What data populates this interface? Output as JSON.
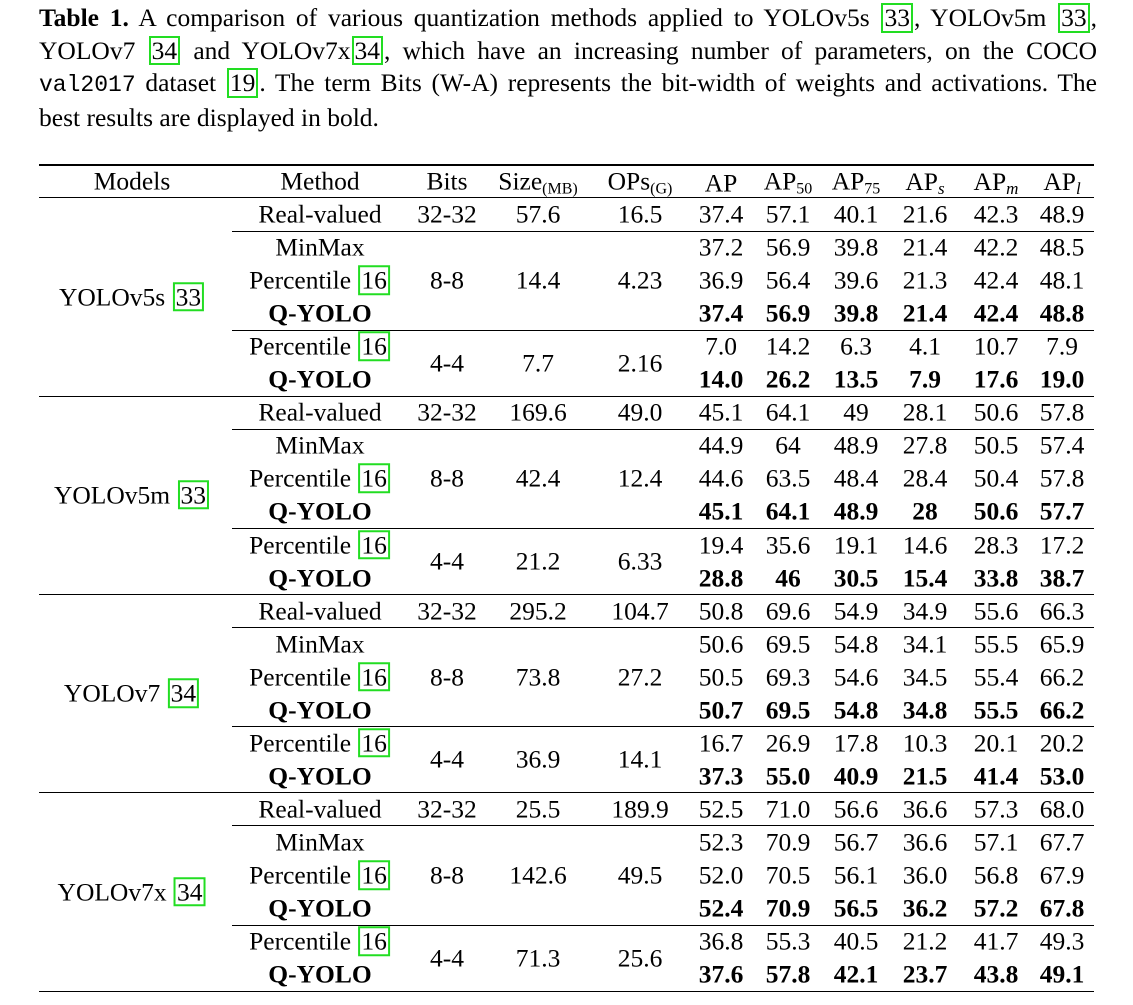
{
  "caption": {
    "label": "Table 1.",
    "parts": [
      " A comparison of various quantization methods applied to YOLOv5s ",
      "33",
      ", YOLOv5m ",
      "33",
      ", YOLOv7 ",
      "34",
      " and YOLOv7x",
      "34",
      ", which have an increasing number of parameters, on the COCO ",
      "val2017",
      " dataset ",
      "19",
      ". The term Bits (W-A) represents the bit-width of weights and activations. The best results are displayed in bold."
    ]
  },
  "header": {
    "models": "Models",
    "method": "Method",
    "bits": "Bits",
    "size": "Size",
    "size_sub": "(MB)",
    "ops": "OPs",
    "ops_sub": "(G)",
    "ap": "AP",
    "ap50": "AP",
    "ap50_sub": "50",
    "ap75": "AP",
    "ap75_sub": "75",
    "aps": "AP",
    "aps_sub": "s",
    "apm": "AP",
    "apm_sub": "m",
    "apl": "AP",
    "apl_sub": "l"
  },
  "groups": [
    {
      "model": "YOLOv5s",
      "cite": "33",
      "real": {
        "label": "Real-valued",
        "bits": "32-32",
        "size": "57.6",
        "ops": "16.5",
        "vals": [
          "37.4",
          "57.1",
          "40.1",
          "21.6",
          "42.3",
          "48.9"
        ]
      },
      "b8": {
        "bits": "8-8",
        "size": "14.4",
        "ops": "4.23",
        "rows": [
          {
            "method": "MinMax",
            "cite": "",
            "bold": false,
            "vals": [
              "37.2",
              "56.9",
              "39.8",
              "21.4",
              "42.2",
              "48.5"
            ]
          },
          {
            "method": "Percentile",
            "cite": "16",
            "bold": false,
            "vals": [
              "36.9",
              "56.4",
              "39.6",
              "21.3",
              "42.4",
              "48.1"
            ]
          },
          {
            "method": "Q-YOLO",
            "cite": "",
            "bold": true,
            "vals": [
              "37.4",
              "56.9",
              "39.8",
              "21.4",
              "42.4",
              "48.8"
            ]
          }
        ]
      },
      "b4": {
        "bits": "4-4",
        "size": "7.7",
        "ops": "2.16",
        "rows": [
          {
            "method": "Percentile",
            "cite": "16",
            "bold": false,
            "vals": [
              "7.0",
              "14.2",
              "6.3",
              "4.1",
              "10.7",
              "7.9"
            ]
          },
          {
            "method": "Q-YOLO",
            "cite": "",
            "bold": true,
            "vals": [
              "14.0",
              "26.2",
              "13.5",
              "7.9",
              "17.6",
              "19.0"
            ]
          }
        ]
      }
    },
    {
      "model": "YOLOv5m",
      "cite": "33",
      "real": {
        "label": "Real-valued",
        "bits": "32-32",
        "size": "169.6",
        "ops": "49.0",
        "vals": [
          "45.1",
          "64.1",
          "49",
          "28.1",
          "50.6",
          "57.8"
        ]
      },
      "b8": {
        "bits": "8-8",
        "size": "42.4",
        "ops": "12.4",
        "rows": [
          {
            "method": "MinMax",
            "cite": "",
            "bold": false,
            "vals": [
              "44.9",
              "64",
              "48.9",
              "27.8",
              "50.5",
              "57.4"
            ]
          },
          {
            "method": "Percentile",
            "cite": "16",
            "bold": false,
            "vals": [
              "44.6",
              "63.5",
              "48.4",
              "28.4",
              "50.4",
              "57.8"
            ]
          },
          {
            "method": "Q-YOLO",
            "cite": "",
            "bold": true,
            "vals": [
              "45.1",
              "64.1",
              "48.9",
              "28",
              "50.6",
              "57.7"
            ]
          }
        ]
      },
      "b4": {
        "bits": "4-4",
        "size": "21.2",
        "ops": "6.33",
        "rows": [
          {
            "method": "Percentile",
            "cite": "16",
            "bold": false,
            "vals": [
              "19.4",
              "35.6",
              "19.1",
              "14.6",
              "28.3",
              "17.2"
            ]
          },
          {
            "method": "Q-YOLO",
            "cite": "",
            "bold": true,
            "vals": [
              "28.8",
              "46",
              "30.5",
              "15.4",
              "33.8",
              "38.7"
            ]
          }
        ]
      }
    },
    {
      "model": "YOLOv7",
      "cite": "34",
      "real": {
        "label": "Real-valued",
        "bits": "32-32",
        "size": "295.2",
        "ops": "104.7",
        "vals": [
          "50.8",
          "69.6",
          "54.9",
          "34.9",
          "55.6",
          "66.3"
        ]
      },
      "b8": {
        "bits": "8-8",
        "size": "73.8",
        "ops": "27.2",
        "rows": [
          {
            "method": "MinMax",
            "cite": "",
            "bold": false,
            "vals": [
              "50.6",
              "69.5",
              "54.8",
              "34.1",
              "55.5",
              "65.9"
            ]
          },
          {
            "method": "Percentile",
            "cite": "16",
            "bold": false,
            "vals": [
              "50.5",
              "69.3",
              "54.6",
              "34.5",
              "55.4",
              "66.2"
            ]
          },
          {
            "method": "Q-YOLO",
            "cite": "",
            "bold": true,
            "vals": [
              "50.7",
              "69.5",
              "54.8",
              "34.8",
              "55.5",
              "66.2"
            ]
          }
        ]
      },
      "b4": {
        "bits": "4-4",
        "size": "36.9",
        "ops": "14.1",
        "rows": [
          {
            "method": "Percentile",
            "cite": "16",
            "bold": false,
            "vals": [
              "16.7",
              "26.9",
              "17.8",
              "10.3",
              "20.1",
              "20.2"
            ]
          },
          {
            "method": "Q-YOLO",
            "cite": "",
            "bold": true,
            "vals": [
              "37.3",
              "55.0",
              "40.9",
              "21.5",
              "41.4",
              "53.0"
            ]
          }
        ]
      }
    },
    {
      "model": "YOLOv7x",
      "cite": "34",
      "real": {
        "label": "Real-valued",
        "bits": "32-32",
        "size": "25.5",
        "ops": "189.9",
        "vals": [
          "52.5",
          "71.0",
          "56.6",
          "36.6",
          "57.3",
          "68.0"
        ]
      },
      "b8": {
        "bits": "8-8",
        "size": "142.6",
        "ops": "49.5",
        "rows": [
          {
            "method": "MinMax",
            "cite": "",
            "bold": false,
            "vals": [
              "52.3",
              "70.9",
              "56.7",
              "36.6",
              "57.1",
              "67.7"
            ]
          },
          {
            "method": "Percentile",
            "cite": "16",
            "bold": false,
            "vals": [
              "52.0",
              "70.5",
              "56.1",
              "36.0",
              "56.8",
              "67.9"
            ]
          },
          {
            "method": "Q-YOLO",
            "cite": "",
            "bold": true,
            "vals": [
              "52.4",
              "70.9",
              "56.5",
              "36.2",
              "57.2",
              "67.8"
            ]
          }
        ]
      },
      "b4": {
        "bits": "4-4",
        "size": "71.3",
        "ops": "25.6",
        "rows": [
          {
            "method": "Percentile",
            "cite": "16",
            "bold": false,
            "vals": [
              "36.8",
              "55.3",
              "40.5",
              "21.2",
              "41.7",
              "49.3"
            ]
          },
          {
            "method": "Q-YOLO",
            "cite": "",
            "bold": true,
            "vals": [
              "37.6",
              "57.8",
              "42.1",
              "23.7",
              "43.8",
              "49.1"
            ]
          }
        ]
      }
    }
  ]
}
